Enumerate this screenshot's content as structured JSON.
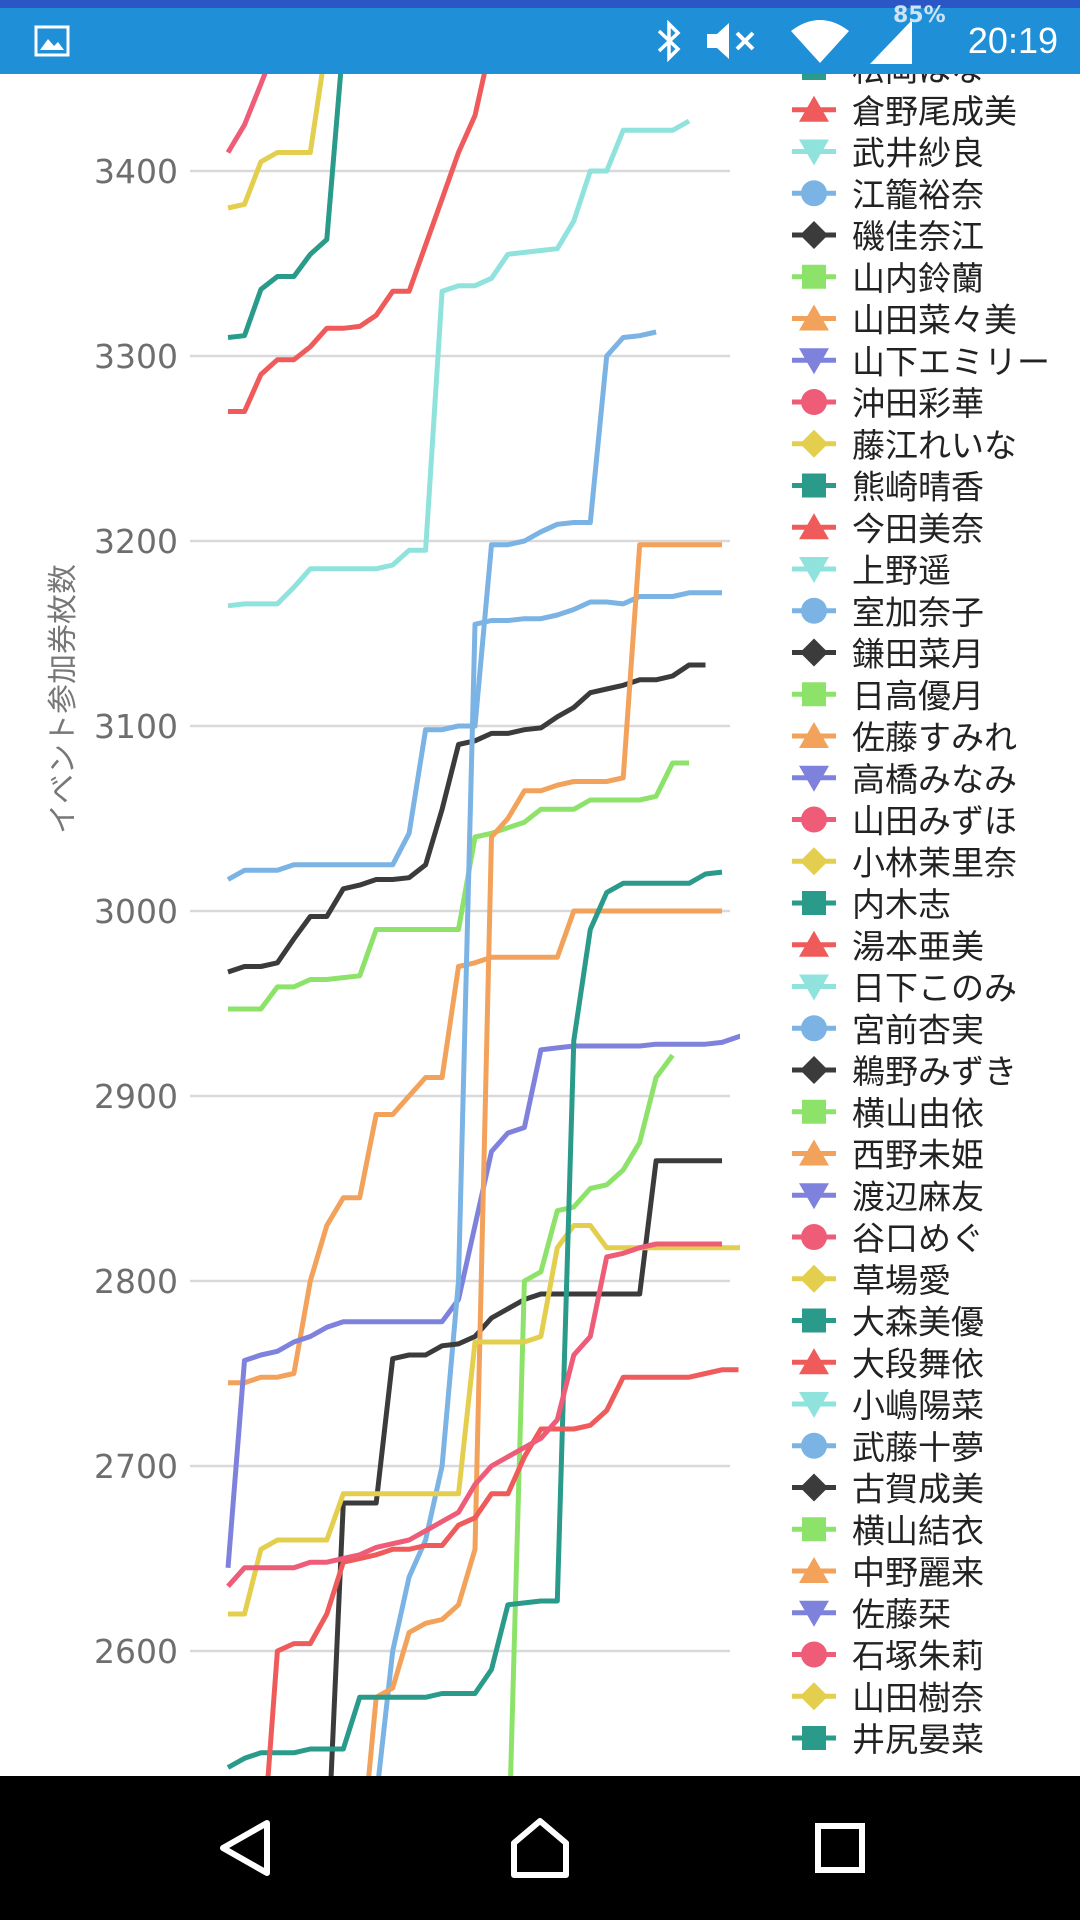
{
  "status_bar": {
    "time": "20:19",
    "battery": "85%",
    "icons": [
      "image-icon",
      "bluetooth-icon",
      "mute-icon",
      "wifi-icon",
      "signal-icon"
    ]
  },
  "nav_bar": {
    "icons": [
      "back-icon",
      "home-icon",
      "recents-icon"
    ]
  },
  "chart_data": {
    "type": "line",
    "ylabel": "イベント参加券枚数",
    "xlabel": "",
    "ylim": [
      2530,
      3460
    ],
    "yticks": [
      2600,
      2700,
      2800,
      2900,
      3000,
      3100,
      3200,
      3300,
      3400
    ],
    "grid": true,
    "legend_position": "right",
    "legend_partially_hidden_top": "松岡はな",
    "palette": {
      "teal": "#2a9a8a",
      "red": "#ef5b5b",
      "aqua": "#8fe3dc",
      "blue": "#7ab3e4",
      "black": "#3b3b3b",
      "green": "#8de36a",
      "orange": "#f2a25a",
      "violet": "#7f82dc",
      "pink": "#ee5c78",
      "yellow": "#e3cf4d"
    },
    "series": [
      {
        "name": "松岡はな",
        "color": "teal",
        "marker": "square"
      },
      {
        "name": "倉野尾成美",
        "color": "red",
        "marker": "triangle-up",
        "values": [
          3270,
          3270,
          3290,
          3298,
          3298,
          3305,
          3315,
          3315,
          3316,
          3322,
          3335,
          3335,
          3360,
          3385,
          3410,
          3430,
          3470
        ]
      },
      {
        "name": "武井紗良",
        "color": "aqua",
        "marker": "triangle-down",
        "values": [
          3165,
          3166,
          3166,
          3166,
          3175,
          3185,
          3185,
          3185,
          3185,
          3185,
          3187,
          3195,
          3195,
          3335,
          3338,
          3338,
          3342,
          3355,
          3356,
          3357,
          3358,
          3373,
          3400,
          3400,
          3422,
          3422,
          3422,
          3422,
          3427
        ]
      },
      {
        "name": "江籠裕奈",
        "color": "blue",
        "marker": "circle",
        "values": [
          3017,
          3022,
          3022,
          3022,
          3025,
          3025,
          3025,
          3025,
          3025,
          3025,
          3025,
          3042,
          3098,
          3098,
          3100,
          3100,
          3198,
          3198,
          3200,
          3205,
          3209,
          3210,
          3210,
          3300,
          3310,
          3311,
          3313
        ]
      },
      {
        "name": "磯佳奈江",
        "color": "black",
        "marker": "diamond",
        "values": [
          2967,
          2970,
          2970,
          2972,
          2985,
          2997,
          2997,
          3012,
          3014,
          3017,
          3017,
          3018,
          3025,
          3055,
          3090,
          3092,
          3096,
          3096,
          3098,
          3099,
          3105,
          3110,
          3118,
          3120,
          3122,
          3125,
          3125,
          3127,
          3133,
          3133
        ]
      },
      {
        "name": "山内鈴蘭",
        "color": "green",
        "marker": "square",
        "values": [
          2947,
          2947,
          2947,
          2959,
          2959,
          2963,
          2963,
          2964,
          2965,
          2990,
          2990,
          2990,
          2990,
          2990,
          2990,
          3040,
          3042,
          3045,
          3048,
          3055,
          3055,
          3055,
          3060,
          3060,
          3060,
          3060,
          3062,
          3080,
          3080
        ]
      },
      {
        "name": "山田菜々美",
        "color": "orange",
        "marker": "triangle-up",
        "values": [
          2745,
          2745,
          2748,
          2748,
          2750,
          2800,
          2830,
          2845,
          2845,
          2890,
          2890,
          2900,
          2910,
          2910,
          2970,
          2972,
          2975,
          2975,
          2975,
          2975,
          2975,
          3000,
          3000,
          3000,
          3000,
          3000,
          3000,
          3000,
          3000,
          3000,
          3000
        ]
      },
      {
        "name": "山下エミリー",
        "color": "violet",
        "marker": "triangle-down",
        "values": [
          2645,
          2757,
          2760,
          2762,
          2767,
          2770,
          2775,
          2778,
          2778,
          2778,
          2778,
          2778,
          2778,
          2778,
          2790,
          2830,
          2870,
          2880,
          2883,
          2925,
          2926,
          2927,
          2927,
          2927,
          2927,
          2927,
          2928,
          2928,
          2928,
          2928,
          2929,
          2932,
          2935
        ]
      },
      {
        "name": "沖田彩華",
        "color": "pink",
        "marker": "circle"
      },
      {
        "name": "藤江れいな",
        "color": "yellow",
        "marker": "diamond",
        "values": [
          3380,
          3382,
          3405,
          3410,
          3410,
          3410,
          3470
        ]
      },
      {
        "name": "熊崎晴香",
        "color": "teal",
        "marker": "square",
        "values": [
          3310,
          3311,
          3336,
          3343,
          3343,
          3355,
          3363,
          3470
        ]
      },
      {
        "name": "今田美奈",
        "color": "red",
        "marker": "triangle-up"
      },
      {
        "name": "上野遥",
        "color": "aqua",
        "marker": "triangle-down"
      },
      {
        "name": "室加奈子",
        "color": "blue",
        "marker": "circle",
        "values": [
          2480,
          2480,
          2480,
          2480,
          2480,
          2480,
          2480,
          2480,
          2480,
          2520,
          2600,
          2640,
          2660,
          2700,
          2800,
          3155,
          3157,
          3157,
          3158,
          3158,
          3160,
          3163,
          3167,
          3167,
          3166,
          3170,
          3170,
          3170,
          3172,
          3172,
          3172
        ]
      },
      {
        "name": "鎌田菜月",
        "color": "black",
        "marker": "diamond",
        "values": [
          2480,
          2480,
          2480,
          2480,
          2480,
          2480,
          2480,
          2680,
          2680,
          2680,
          2758,
          2760,
          2760,
          2765,
          2766,
          2770,
          2780,
          2785,
          2790,
          2793,
          2793,
          2793,
          2793,
          2793,
          2793,
          2793,
          2865,
          2865,
          2865,
          2865,
          2865
        ]
      },
      {
        "name": "日高優月",
        "color": "green",
        "marker": "square",
        "values": [
          2480,
          2480,
          2480,
          2480,
          2480,
          2480,
          2480,
          2480,
          2480,
          2480,
          2480,
          2480,
          2480,
          2480,
          2480,
          2480,
          2480,
          2480,
          2800,
          2805,
          2838,
          2840,
          2850,
          2852,
          2860,
          2875,
          2910,
          2922
        ]
      },
      {
        "name": "佐藤すみれ",
        "color": "orange",
        "marker": "triangle-up",
        "values": [
          2480,
          2480,
          2480,
          2480,
          2480,
          2480,
          2480,
          2480,
          2480,
          2575,
          2580,
          2610,
          2615,
          2617,
          2625,
          2655,
          3040,
          3050,
          3065,
          3065,
          3068,
          3070,
          3070,
          3070,
          3072,
          3198,
          3198,
          3198,
          3198,
          3198,
          3198
        ]
      },
      {
        "name": "高橋みなみ",
        "color": "violet",
        "marker": "triangle-down"
      },
      {
        "name": "山田みずほ",
        "color": "pink",
        "marker": "circle",
        "values": [
          3410,
          3425,
          3447,
          3470
        ]
      },
      {
        "name": "小林茉里奈",
        "color": "yellow",
        "marker": "diamond",
        "values": [
          2620,
          2620,
          2655,
          2660,
          2660,
          2660,
          2660,
          2685,
          2685,
          2685,
          2685,
          2685,
          2685,
          2685,
          2685,
          2767,
          2767,
          2767,
          2767,
          2770,
          2818,
          2830,
          2830,
          2818,
          2818,
          2818,
          2818,
          2818,
          2818,
          2818,
          2818,
          2818,
          2820
        ]
      },
      {
        "name": "内木志",
        "color": "teal",
        "marker": "square",
        "values": [
          2537,
          2542,
          2545,
          2545,
          2545,
          2547,
          2547,
          2547,
          2575,
          2575,
          2575,
          2575,
          2575,
          2577,
          2577,
          2577,
          2590,
          2625,
          2626,
          2627,
          2627,
          2930,
          2990,
          3010,
          3015,
          3015,
          3015,
          3015,
          3015,
          3020,
          3021
        ]
      },
      {
        "name": "湯本亜美",
        "color": "red",
        "marker": "triangle-up",
        "values": [
          2480,
          2480,
          2480,
          2600,
          2604,
          2604,
          2620,
          2648,
          2650,
          2652,
          2655,
          2655,
          2657,
          2657,
          2668,
          2672,
          2685,
          2685,
          2705,
          2720,
          2720,
          2720,
          2722,
          2730,
          2748,
          2748,
          2748,
          2748,
          2748,
          2750,
          2752,
          2752
        ]
      },
      {
        "name": "日下このみ",
        "color": "aqua",
        "marker": "triangle-down"
      },
      {
        "name": "宮前杏実",
        "color": "blue",
        "marker": "circle"
      },
      {
        "name": "鵜野みずき",
        "color": "black",
        "marker": "diamond"
      },
      {
        "name": "横山由依",
        "color": "green",
        "marker": "square"
      },
      {
        "name": "西野未姫",
        "color": "orange",
        "marker": "triangle-up"
      },
      {
        "name": "渡辺麻友",
        "color": "violet",
        "marker": "triangle-down"
      },
      {
        "name": "谷口めぐ",
        "color": "pink",
        "marker": "circle",
        "values": [
          2635,
          2645,
          2645,
          2645,
          2645,
          2648,
          2648,
          2650,
          2652,
          2656,
          2658,
          2660,
          2665,
          2670,
          2675,
          2690,
          2700,
          2705,
          2710,
          2715,
          2725,
          2760,
          2770,
          2813,
          2815,
          2818,
          2820,
          2820,
          2820,
          2820,
          2820
        ]
      },
      {
        "name": "草場愛",
        "color": "yellow",
        "marker": "diamond"
      },
      {
        "name": "大森美優",
        "color": "teal",
        "marker": "square"
      },
      {
        "name": "大段舞依",
        "color": "red",
        "marker": "triangle-up"
      },
      {
        "name": "小嶋陽菜",
        "color": "aqua",
        "marker": "triangle-down"
      },
      {
        "name": "武藤十夢",
        "color": "blue",
        "marker": "circle"
      },
      {
        "name": "古賀成美",
        "color": "black",
        "marker": "diamond"
      },
      {
        "name": "横山結衣",
        "color": "green",
        "marker": "square"
      },
      {
        "name": "中野麗来",
        "color": "orange",
        "marker": "triangle-up"
      },
      {
        "name": "佐藤栞",
        "color": "violet",
        "marker": "triangle-down"
      },
      {
        "name": "石塚朱莉",
        "color": "pink",
        "marker": "circle"
      },
      {
        "name": "山田樹奈",
        "color": "yellow",
        "marker": "diamond"
      },
      {
        "name": "井尻晏菜",
        "color": "teal",
        "marker": "square"
      }
    ]
  }
}
